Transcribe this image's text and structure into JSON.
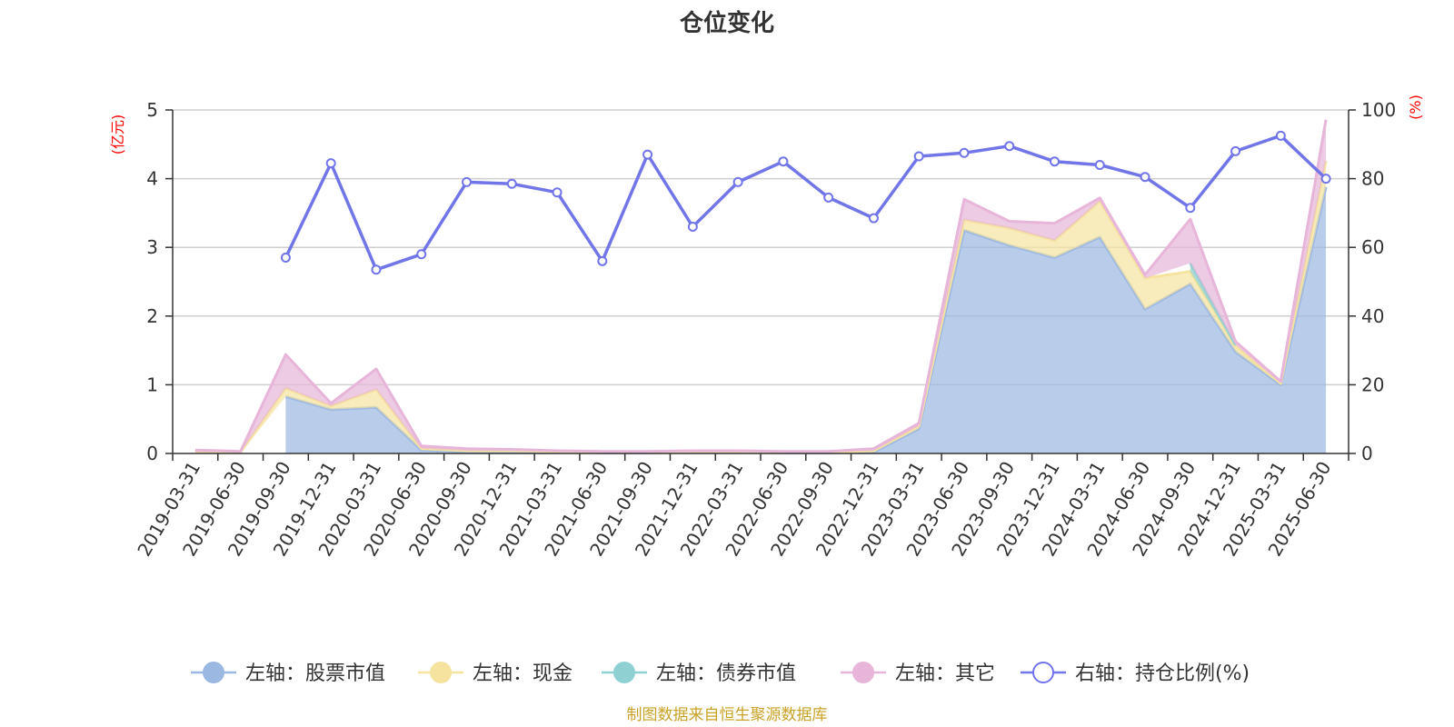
{
  "chart_data": {
    "type": "area",
    "title": "仓位变化",
    "left_axis": {
      "unit": "(亿元)",
      "ylim": [
        0,
        5
      ],
      "ticks": [
        "0",
        "1",
        "2",
        "3",
        "4",
        "5"
      ]
    },
    "right_axis": {
      "unit": "(%)",
      "ylim": [
        0,
        100
      ],
      "ticks": [
        "0",
        "20",
        "40",
        "60",
        "80",
        "100"
      ]
    },
    "categories": [
      "2019-03-31",
      "2019-06-30",
      "2019-09-30",
      "2019-12-31",
      "2020-03-31",
      "2020-06-30",
      "2020-09-30",
      "2020-12-31",
      "2021-03-31",
      "2021-06-30",
      "2021-09-30",
      "2021-12-31",
      "2022-03-31",
      "2022-06-30",
      "2022-09-30",
      "2022-12-31",
      "2023-03-31",
      "2023-06-30",
      "2023-09-30",
      "2023-12-31",
      "2024-03-31",
      "2024-06-30",
      "2024-09-30",
      "2024-12-31",
      "2025-03-31",
      "2025-06-30"
    ],
    "series": [
      {
        "name": "左轴：股票市值",
        "axis": "left",
        "color": "#9bb8e3",
        "values": [
          null,
          null,
          0.83,
          0.64,
          0.67,
          0.05,
          0.03,
          0.03,
          0.02,
          0.01,
          0.01,
          0.02,
          0.02,
          0.01,
          0.01,
          0.02,
          0.36,
          3.25,
          3.03,
          2.85,
          3.15,
          2.1,
          2.47,
          1.48,
          1.0,
          3.88
        ]
      },
      {
        "name": "左轴：现金",
        "axis": "left",
        "color": "#f5e39f",
        "values": [
          0.02,
          0.02,
          0.12,
          0.05,
          0.26,
          0.02,
          0.01,
          0.01,
          0.01,
          0.01,
          0.01,
          0.01,
          0.01,
          0.01,
          0.01,
          0.02,
          0.04,
          0.15,
          0.25,
          0.25,
          0.52,
          0.45,
          0.18,
          0.08,
          0.02,
          0.38
        ]
      },
      {
        "name": "左轴：债券市值",
        "axis": "left",
        "color": "#8fd1d3",
        "values": [
          null,
          null,
          null,
          null,
          null,
          null,
          null,
          null,
          null,
          null,
          null,
          null,
          null,
          null,
          null,
          null,
          null,
          null,
          null,
          null,
          null,
          null,
          0.12,
          0.02,
          null,
          null
        ]
      },
      {
        "name": "左轴：其它",
        "axis": "left",
        "color": "#e7b5d9",
        "values": [
          0.03,
          0.01,
          0.49,
          0.04,
          0.3,
          0.04,
          0.03,
          0.02,
          0.01,
          0.01,
          0.01,
          0.01,
          0.01,
          0.01,
          0.01,
          0.03,
          0.04,
          0.3,
          0.1,
          0.25,
          0.05,
          0.05,
          0.64,
          0.05,
          0.03,
          0.6
        ]
      },
      {
        "name": "右轴：持仓比例(%)",
        "axis": "right",
        "type": "line",
        "color": "#7075e8",
        "values": [
          null,
          null,
          57.0,
          84.5,
          53.5,
          58.0,
          79.0,
          78.5,
          76.0,
          56.0,
          87.0,
          66.0,
          79.0,
          85.0,
          74.5,
          68.5,
          86.5,
          87.5,
          89.5,
          85.0,
          84.0,
          80.5,
          71.5,
          88.0,
          92.5,
          80.0
        ]
      }
    ],
    "grid": true,
    "legend_position": "bottom"
  },
  "footer": {
    "source_text": "制图数据来自恒生聚源数据库"
  }
}
